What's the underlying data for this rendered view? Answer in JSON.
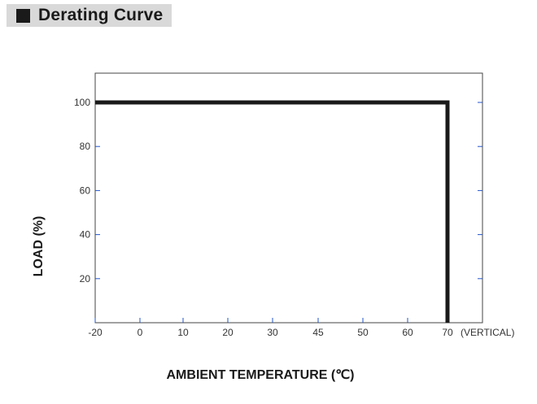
{
  "header": {
    "title": "Derating Curve",
    "icon": "square-icon"
  },
  "chart_data": {
    "type": "line",
    "title": "",
    "xlabel": "AMBIENT TEMPERATURE (℃)",
    "ylabel": "LOAD (%)",
    "x_ticks": [
      -20,
      0,
      10,
      20,
      30,
      45,
      50,
      60,
      70
    ],
    "x_tick_note": "(VERTICAL)",
    "y_ticks": [
      20,
      40,
      60,
      80,
      100
    ],
    "xlim": [
      -20,
      70
    ],
    "ylim": [
      0,
      100
    ],
    "grid": false,
    "series": [
      {
        "values": [
          {
            "x": -20,
            "y": 100
          },
          {
            "x": 70,
            "y": 100
          },
          {
            "x": 70,
            "y": 0
          }
        ]
      }
    ],
    "colors": {
      "curve": "#1a1a1a",
      "frame": "#444444",
      "tick": "#2255cc"
    }
  }
}
